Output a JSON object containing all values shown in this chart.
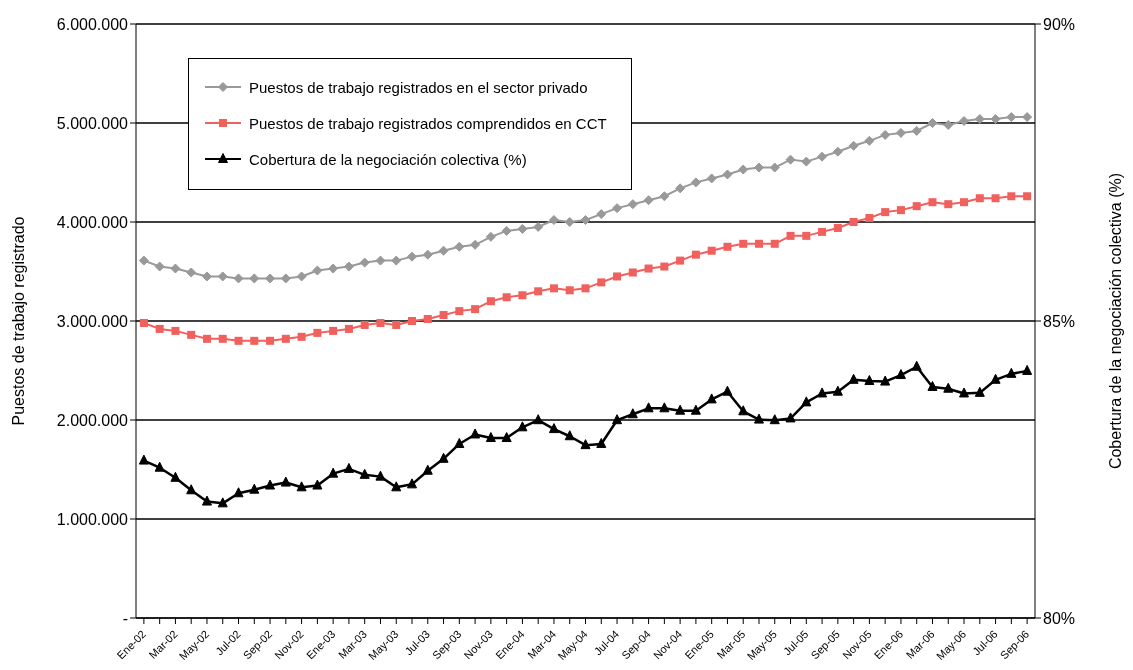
{
  "chart_data": {
    "type": "line",
    "ylabel": "Puestos de trabajo registrado",
    "y2label": "Cobertura de la negociación colectiva (%)",
    "categories": [
      "Ene-02",
      null,
      "Mar-02",
      null,
      "May-02",
      null,
      "Jul-02",
      null,
      "Sep-02",
      null,
      "Nov-02",
      null,
      "Ene-03",
      null,
      "Mar-03",
      null,
      "May-03",
      null,
      "Jul-03",
      null,
      "Sep-03",
      null,
      "Nov-03",
      null,
      "Ene-04",
      null,
      "Mar-04",
      null,
      "May-04",
      null,
      "Jul-04",
      null,
      "Sep-04",
      null,
      "Nov-04",
      null,
      "Ene-05",
      null,
      "Mar-05",
      null,
      "May-05",
      null,
      "Jul-05",
      null,
      "Sep-05",
      null,
      "Nov-05",
      null,
      "Ene-06",
      null,
      "Mar-06",
      null,
      "May-06",
      null,
      "Jul-06",
      null,
      "Sep-06"
    ],
    "series": [
      {
        "name": "Puestos de trabajo registrados en el sector privado",
        "color": "#999999",
        "marker": "diamond",
        "values": [
          3610000,
          3550000,
          3530000,
          3490000,
          3450000,
          3450000,
          3430000,
          3430000,
          3430000,
          3430000,
          3450000,
          3510000,
          3530000,
          3550000,
          3590000,
          3610000,
          3610000,
          3650000,
          3670000,
          3710000,
          3750000,
          3770000,
          3850000,
          3910000,
          3930000,
          3950000,
          4020000,
          4000000,
          4020000,
          4080000,
          4140000,
          4180000,
          4220000,
          4260000,
          4340000,
          4400000,
          4440000,
          4480000,
          4530000,
          4550000,
          4550000,
          4630000,
          4610000,
          4660000,
          4710000,
          4770000,
          4820000,
          4880000,
          4900000,
          4920000,
          5000000,
          4980000,
          5020000,
          5040000,
          5040000,
          5060000,
          5060000
        ]
      },
      {
        "name": "Puestos de trabajo registrados comprendidos en CCT",
        "color": "#f0605d",
        "marker": "square",
        "values": [
          2980000,
          2920000,
          2900000,
          2860000,
          2820000,
          2820000,
          2800000,
          2800000,
          2800000,
          2820000,
          2840000,
          2880000,
          2900000,
          2920000,
          2960000,
          2980000,
          2960000,
          3000000,
          3020000,
          3060000,
          3100000,
          3120000,
          3200000,
          3240000,
          3260000,
          3300000,
          3330000,
          3310000,
          3330000,
          3390000,
          3450000,
          3490000,
          3530000,
          3550000,
          3610000,
          3670000,
          3710000,
          3750000,
          3780000,
          3780000,
          3780000,
          3860000,
          3860000,
          3900000,
          3940000,
          4000000,
          4040000,
          4100000,
          4120000,
          4160000,
          4200000,
          4180000,
          4200000,
          4240000,
          4240000,
          4260000,
          4260000
        ]
      },
      {
        "name": "Cobertura de la negociación colectiva (%)",
        "color": "#000000",
        "marker": "triangle",
        "axis": "y2",
        "values": [
          82.65,
          82.53,
          82.36,
          82.15,
          81.96,
          81.93,
          82.1,
          82.16,
          82.23,
          82.28,
          82.2,
          82.23,
          82.43,
          82.51,
          82.41,
          82.38,
          82.2,
          82.25,
          82.48,
          82.68,
          82.93,
          83.09,
          83.03,
          83.03,
          83.21,
          83.33,
          83.18,
          83.06,
          82.91,
          82.93,
          83.33,
          83.43,
          83.53,
          83.53,
          83.49,
          83.49,
          83.68,
          83.81,
          83.48,
          83.34,
          83.33,
          83.36,
          83.63,
          83.78,
          83.81,
          84.01,
          83.99,
          83.98,
          84.09,
          84.23,
          83.89,
          83.86,
          83.78,
          83.79,
          84.01,
          84.11,
          84.16
        ]
      }
    ],
    "ylim": [
      0,
      6000000
    ],
    "yticks": [
      {
        "value": 0,
        "label": "-"
      },
      {
        "value": 1000000,
        "label": "1.000.000"
      },
      {
        "value": 2000000,
        "label": "2.000.000"
      },
      {
        "value": 3000000,
        "label": "3.000.000"
      },
      {
        "value": 4000000,
        "label": "4.000.000"
      },
      {
        "value": 5000000,
        "label": "5.000.000"
      },
      {
        "value": 6000000,
        "label": "6.000.000"
      }
    ],
    "y2lim": [
      80,
      90
    ],
    "y2ticks": [
      {
        "value": 80,
        "label": "80%"
      },
      {
        "value": 85,
        "label": "85%"
      },
      {
        "value": 90,
        "label": "90%"
      }
    ],
    "grid": "y",
    "legend": "top left",
    "line_style": "solid"
  }
}
